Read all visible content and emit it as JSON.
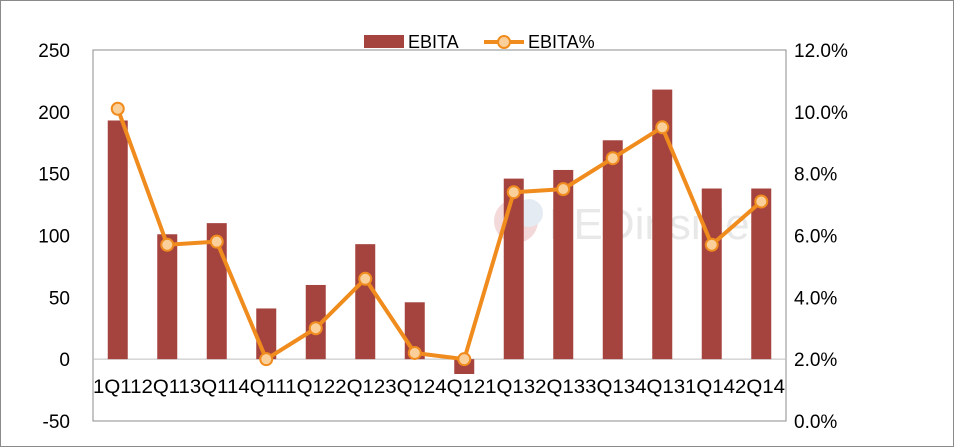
{
  "chart_data": {
    "type": "bar",
    "categories": [
      "1Q11",
      "2Q11",
      "3Q11",
      "4Q11",
      "1Q12",
      "2Q12",
      "3Q12",
      "4Q12",
      "1Q13",
      "2Q13",
      "3Q13",
      "4Q13",
      "1Q14",
      "2Q14"
    ],
    "series": [
      {
        "name": "EBITA",
        "type": "bar",
        "axis": "left",
        "color": "#a5443f",
        "values": [
          193,
          101,
          110,
          41,
          60,
          93,
          46,
          -12,
          146,
          153,
          177,
          218,
          138,
          138
        ]
      },
      {
        "name": "EBITA%",
        "type": "line",
        "axis": "right",
        "color": "#f08c1e",
        "values": [
          10.1,
          5.7,
          5.8,
          2.0,
          3.0,
          4.6,
          2.2,
          2.0,
          7.4,
          7.5,
          8.5,
          9.5,
          5.7,
          7.1
        ]
      }
    ],
    "left_axis": {
      "min": -50,
      "max": 250,
      "step": 50,
      "ticks": [
        "250",
        "200",
        "150",
        "100",
        "50",
        "0",
        "-50"
      ]
    },
    "right_axis": {
      "min": 0,
      "max": 12,
      "step": 2,
      "ticks": [
        "12.0%",
        "10.0%",
        "8.0%",
        "6.0%",
        "4.0%",
        "2.0%",
        "0.0%"
      ]
    },
    "category_labels_text": "1Q112Q113Q114Q111Q122Q123Q124Q121Q132Q133Q134Q131Q142Q14",
    "legend": {
      "position": "top-center",
      "items": [
        "EBITA",
        "EBITA%"
      ]
    },
    "watermark": "LEDinside",
    "grid": false
  }
}
